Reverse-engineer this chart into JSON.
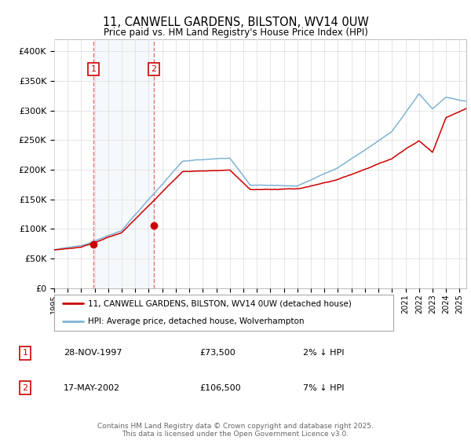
{
  "title": "11, CANWELL GARDENS, BILSTON, WV14 0UW",
  "subtitle": "Price paid vs. HM Land Registry's House Price Index (HPI)",
  "yticks": [
    0,
    50000,
    100000,
    150000,
    200000,
    250000,
    300000,
    350000,
    400000
  ],
  "ylim": [
    0,
    420000
  ],
  "sale1": {
    "date_label": "28-NOV-1997",
    "price": 73500,
    "hpi_diff": "2% ↓ HPI",
    "year": 1997.9
  },
  "sale2": {
    "date_label": "17-MAY-2002",
    "price": 106500,
    "hpi_diff": "7% ↓ HPI",
    "year": 2002.38
  },
  "legend_line1": "11, CANWELL GARDENS, BILSTON, WV14 0UW (detached house)",
  "legend_line2": "HPI: Average price, detached house, Wolverhampton",
  "footer": "Contains HM Land Registry data © Crown copyright and database right 2025.\nThis data is licensed under the Open Government Licence v3.0.",
  "line_color_red": "#cc0000",
  "line_color_blue": "#7fb3d3",
  "dot_color": "#cc0000",
  "dashed_color": "#e06060",
  "fill_color": "#dce9f5",
  "background_color": "#ffffff",
  "grid_color": "#e0e0e0",
  "xlim_start": 1995,
  "xlim_end": 2025.5
}
